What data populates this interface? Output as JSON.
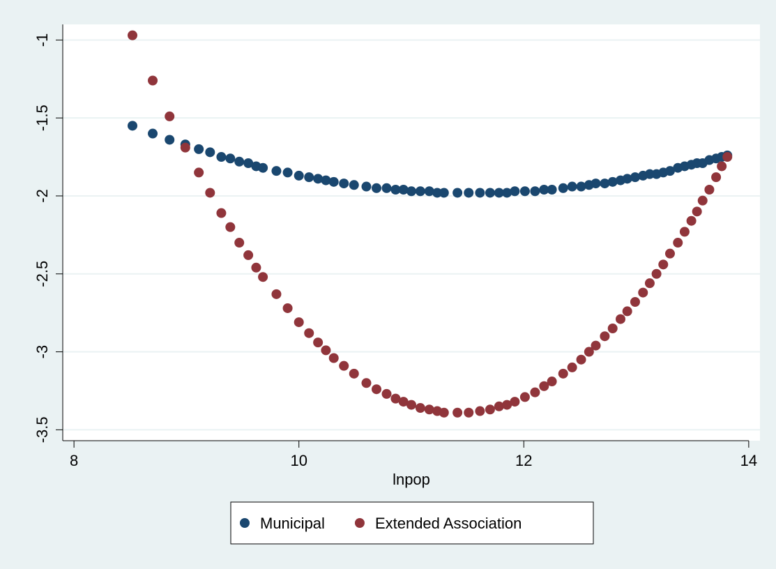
{
  "chart_data": {
    "type": "scatter",
    "x_label": "lnpop",
    "x": [
      8.52,
      8.7,
      8.85,
      8.99,
      9.11,
      9.21,
      9.31,
      9.39,
      9.47,
      9.55,
      9.62,
      9.68,
      9.8,
      9.9,
      10.0,
      10.09,
      10.17,
      10.24,
      10.31,
      10.4,
      10.49,
      10.6,
      10.69,
      10.78,
      10.86,
      10.93,
      11.0,
      11.08,
      11.16,
      11.23,
      11.29,
      11.41,
      11.51,
      11.61,
      11.7,
      11.78,
      11.85,
      11.92,
      12.01,
      12.1,
      12.18,
      12.25,
      12.35,
      12.43,
      12.51,
      12.58,
      12.64,
      12.72,
      12.79,
      12.86,
      12.92,
      12.99,
      13.06,
      13.12,
      13.18,
      13.24,
      13.3,
      13.37,
      13.43,
      13.49,
      13.54,
      13.59,
      13.65,
      13.71,
      13.76,
      13.81
    ],
    "series": [
      {
        "name": "Municipal",
        "color": "#1a476f",
        "values": [
          -1.55,
          -1.6,
          -1.64,
          -1.67,
          -1.7,
          -1.72,
          -1.75,
          -1.76,
          -1.78,
          -1.79,
          -1.81,
          -1.82,
          -1.84,
          -1.85,
          -1.87,
          -1.88,
          -1.89,
          -1.9,
          -1.91,
          -1.92,
          -1.93,
          -1.94,
          -1.95,
          -1.95,
          -1.96,
          -1.96,
          -1.97,
          -1.97,
          -1.97,
          -1.98,
          -1.98,
          -1.98,
          -1.98,
          -1.98,
          -1.98,
          -1.98,
          -1.98,
          -1.97,
          -1.97,
          -1.97,
          -1.96,
          -1.96,
          -1.95,
          -1.94,
          -1.94,
          -1.93,
          -1.92,
          -1.92,
          -1.91,
          -1.9,
          -1.89,
          -1.88,
          -1.87,
          -1.86,
          -1.86,
          -1.85,
          -1.84,
          -1.82,
          -1.81,
          -1.8,
          -1.79,
          -1.79,
          -1.77,
          -1.76,
          -1.75,
          -1.74
        ]
      },
      {
        "name": "Extended Association",
        "color": "#90353b",
        "values": [
          -0.97,
          -1.26,
          -1.49,
          -1.69,
          -1.85,
          -1.98,
          -2.11,
          -2.2,
          -2.3,
          -2.38,
          -2.46,
          -2.52,
          -2.63,
          -2.72,
          -2.81,
          -2.88,
          -2.94,
          -2.99,
          -3.04,
          -3.09,
          -3.14,
          -3.2,
          -3.24,
          -3.27,
          -3.3,
          -3.32,
          -3.34,
          -3.36,
          -3.37,
          -3.38,
          -3.39,
          -3.39,
          -3.39,
          -3.38,
          -3.37,
          -3.35,
          -3.34,
          -3.32,
          -3.29,
          -3.26,
          -3.22,
          -3.19,
          -3.14,
          -3.1,
          -3.05,
          -3.0,
          -2.96,
          -2.9,
          -2.85,
          -2.79,
          -2.74,
          -2.68,
          -2.62,
          -2.56,
          -2.5,
          -2.44,
          -2.37,
          -2.3,
          -2.23,
          -2.16,
          -2.1,
          -2.03,
          -1.96,
          -1.88,
          -1.81,
          -1.75
        ]
      }
    ],
    "xlim": [
      7.9,
      14.1
    ],
    "xticks": [
      8,
      10,
      12,
      14
    ],
    "ylim": [
      -3.57,
      -0.9
    ],
    "yticks": [
      -1,
      -1.5,
      -2,
      -2.5,
      -3,
      -3.5
    ],
    "grid": true,
    "legend": "bottom"
  }
}
